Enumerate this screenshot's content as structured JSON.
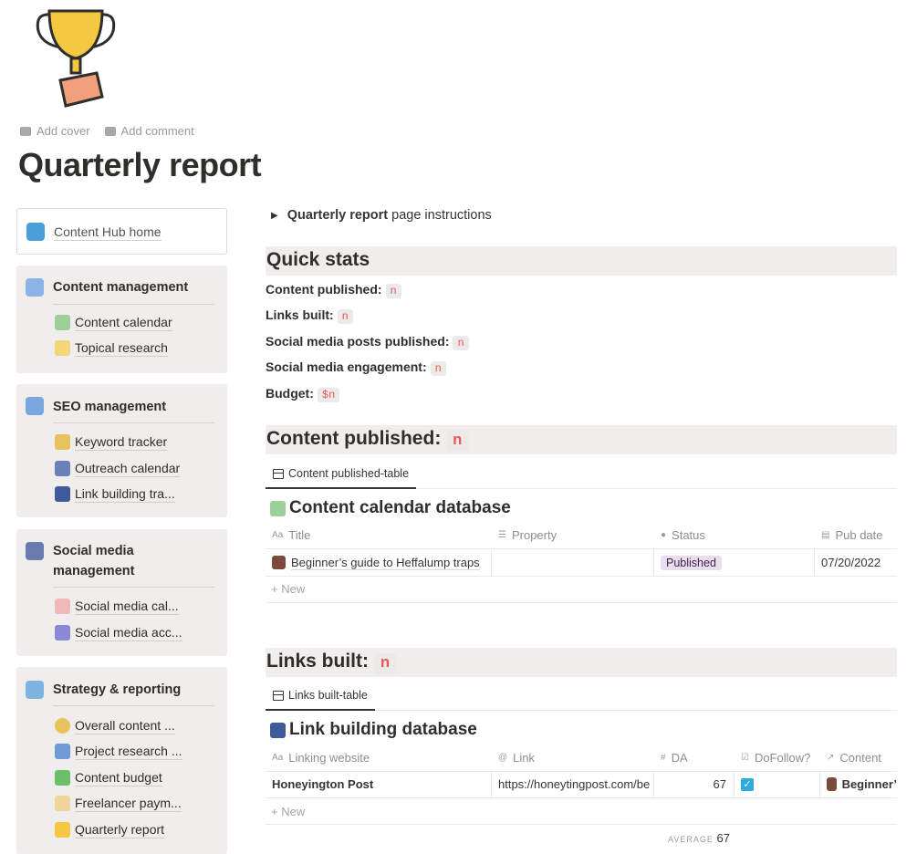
{
  "page": {
    "title": "Quarterly report",
    "add_cover": "Add cover",
    "add_comment": "Add comment"
  },
  "sidebar": {
    "home": {
      "label": "Content Hub home",
      "icon": "tablet-icon"
    },
    "sections": [
      {
        "title": "Content management",
        "items": [
          {
            "label": "Content calendar"
          },
          {
            "label": "Topical research"
          }
        ]
      },
      {
        "title": "SEO management",
        "items": [
          {
            "label": "Keyword tracker"
          },
          {
            "label": "Outreach calendar"
          },
          {
            "label": "Link building tra..."
          }
        ]
      },
      {
        "title_line1": "Social media",
        "title_line2": "management",
        "items": [
          {
            "label": "Social media cal..."
          },
          {
            "label": "Social media acc..."
          }
        ]
      },
      {
        "title": "Strategy & reporting",
        "items": [
          {
            "label": "Overall content ..."
          },
          {
            "label": "Project research ..."
          },
          {
            "label": "Content budget"
          },
          {
            "label": "Freelancer paym..."
          },
          {
            "label": "Quarterly report"
          }
        ]
      }
    ]
  },
  "main": {
    "toggle": {
      "bold": "Quarterly report",
      "rest": " page instructions"
    },
    "quick_stats": {
      "heading": "Quick stats",
      "items": [
        {
          "label": "Content published:",
          "value": "n"
        },
        {
          "label": "Links built:",
          "value": "n"
        },
        {
          "label": "Social media posts published:",
          "value": "n"
        },
        {
          "label": "Social media engagement:",
          "value": "n"
        },
        {
          "label": "Budget:",
          "value": "$n"
        }
      ]
    },
    "content_published": {
      "heading": "Content published:",
      "value": "n",
      "tab": "Content published-table",
      "db_title": "Content calendar database",
      "columns": [
        "Title",
        "Property",
        "Status",
        "Pub date"
      ],
      "rows": [
        {
          "title": "Beginner’s guide to Heffalump traps",
          "property": "",
          "status": "Published",
          "pub_date": "07/20/2022"
        }
      ],
      "new_label": "New"
    },
    "links_built": {
      "heading": "Links built:",
      "value": "n",
      "tab": "Links built-table",
      "db_title": "Link building database",
      "columns": [
        "Linking website",
        "Link",
        "DA",
        "DoFollow?",
        "Content"
      ],
      "rows": [
        {
          "website": "Honeyington Post",
          "link": "https://honeytingpost.com/be",
          "da": "67",
          "dofollow": true,
          "content": "Beginner’"
        }
      ],
      "new_label": "New",
      "average_label": "AVERAGE",
      "average_value": "67"
    }
  },
  "colors": {
    "accent_code": "#eb5757",
    "status_published_bg": "#e8deee",
    "checkbox": "#2eaadc"
  }
}
